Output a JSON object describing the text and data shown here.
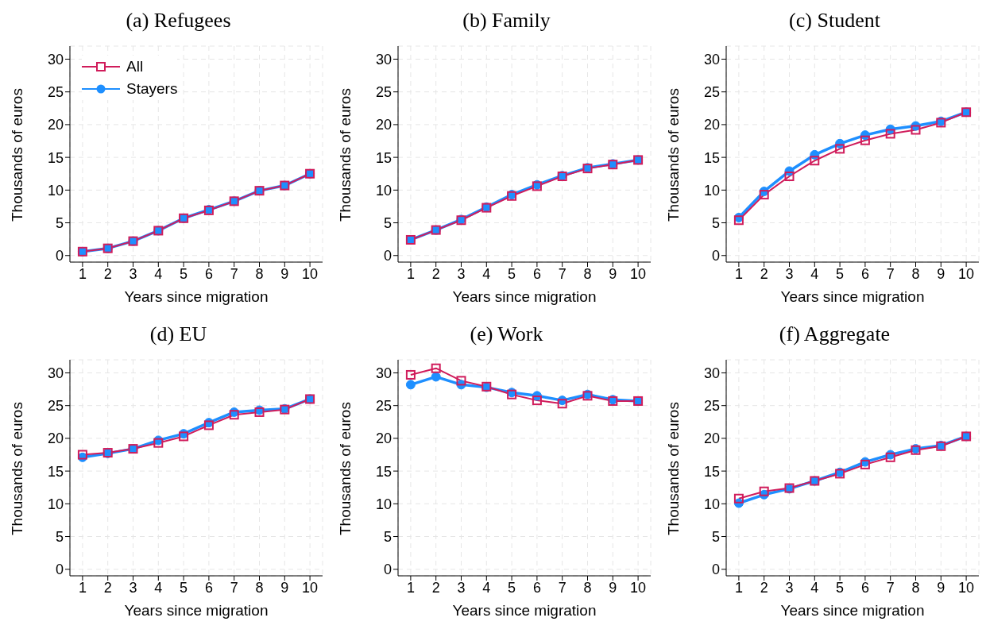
{
  "chart_data": [
    {
      "type": "line",
      "title": "(a) Refugees",
      "xlabel": "Years since migration",
      "ylabel": "Thousands of euros",
      "x": [
        1,
        2,
        3,
        4,
        5,
        6,
        7,
        8,
        9,
        10
      ],
      "xlim": [
        0.5,
        10.5
      ],
      "xticks": [
        1,
        2,
        3,
        4,
        5,
        6,
        7,
        8,
        9,
        10
      ],
      "ylim": [
        -1,
        32
      ],
      "yticks": [
        0,
        5,
        10,
        15,
        20,
        25,
        30
      ],
      "grid": true,
      "legend": "top left",
      "series": [
        {
          "name": "All",
          "color": "#d01c5b",
          "marker": "square",
          "values": [
            0.6,
            1.1,
            2.2,
            3.8,
            5.7,
            6.9,
            8.3,
            9.9,
            10.7,
            12.5
          ]
        },
        {
          "name": "Stayers",
          "color": "#1e8fff",
          "marker": "circle",
          "values": [
            0.6,
            1.1,
            2.2,
            3.8,
            5.7,
            7.0,
            8.3,
            9.9,
            10.7,
            12.5
          ]
        }
      ]
    },
    {
      "type": "line",
      "title": "(b) Family",
      "xlabel": "Years since migration",
      "ylabel": "Thousands of euros",
      "x": [
        1,
        2,
        3,
        4,
        5,
        6,
        7,
        8,
        9,
        10
      ],
      "xlim": [
        0.5,
        10.5
      ],
      "xticks": [
        1,
        2,
        3,
        4,
        5,
        6,
        7,
        8,
        9,
        10
      ],
      "ylim": [
        -1,
        32
      ],
      "yticks": [
        0,
        5,
        10,
        15,
        20,
        25,
        30
      ],
      "grid": true,
      "series": [
        {
          "color": "#d01c5b",
          "marker": "square",
          "values": [
            2.4,
            3.9,
            5.4,
            7.3,
            9.1,
            10.6,
            12.1,
            13.3,
            13.9,
            14.6
          ]
        },
        {
          "color": "#1e8fff",
          "marker": "circle",
          "values": [
            2.4,
            3.9,
            5.5,
            7.4,
            9.3,
            10.8,
            12.2,
            13.4,
            14.0,
            14.6
          ]
        }
      ]
    },
    {
      "type": "line",
      "title": "(c) Student",
      "xlabel": "Years since migration",
      "ylabel": "Thousands of euros",
      "x": [
        1,
        2,
        3,
        4,
        5,
        6,
        7,
        8,
        9,
        10
      ],
      "xlim": [
        0.5,
        10.5
      ],
      "xticks": [
        1,
        2,
        3,
        4,
        5,
        6,
        7,
        8,
        9,
        10
      ],
      "ylim": [
        -1,
        32
      ],
      "yticks": [
        0,
        5,
        10,
        15,
        20,
        25,
        30
      ],
      "grid": true,
      "series": [
        {
          "color": "#d01c5b",
          "marker": "square",
          "values": [
            5.4,
            9.3,
            12.1,
            14.5,
            16.3,
            17.6,
            18.6,
            19.2,
            20.3,
            21.9
          ]
        },
        {
          "color": "#1e8fff",
          "marker": "circle",
          "values": [
            5.8,
            9.8,
            12.9,
            15.4,
            17.1,
            18.4,
            19.3,
            19.8,
            20.5,
            21.9
          ]
        }
      ]
    },
    {
      "type": "line",
      "title": "(d) EU",
      "xlabel": "Years since migration",
      "ylabel": "Thousands of euros",
      "x": [
        1,
        2,
        3,
        4,
        5,
        6,
        7,
        8,
        9,
        10
      ],
      "xlim": [
        0.5,
        10.5
      ],
      "xticks": [
        1,
        2,
        3,
        4,
        5,
        6,
        7,
        8,
        9,
        10
      ],
      "ylim": [
        -1,
        32
      ],
      "yticks": [
        0,
        5,
        10,
        15,
        20,
        25,
        30
      ],
      "grid": true,
      "series": [
        {
          "color": "#d01c5b",
          "marker": "square",
          "values": [
            17.5,
            17.8,
            18.4,
            19.3,
            20.3,
            22.0,
            23.6,
            24.0,
            24.4,
            26.0
          ]
        },
        {
          "color": "#1e8fff",
          "marker": "circle",
          "values": [
            17.1,
            17.7,
            18.4,
            19.7,
            20.7,
            22.4,
            24.0,
            24.3,
            24.5,
            26.0
          ]
        }
      ]
    },
    {
      "type": "line",
      "title": "(e) Work",
      "xlabel": "Years since migration",
      "ylabel": "Thousands of euros",
      "x": [
        1,
        2,
        3,
        4,
        5,
        6,
        7,
        8,
        9,
        10
      ],
      "xlim": [
        0.5,
        10.5
      ],
      "xticks": [
        1,
        2,
        3,
        4,
        5,
        6,
        7,
        8,
        9,
        10
      ],
      "ylim": [
        -1,
        32
      ],
      "yticks": [
        0,
        5,
        10,
        15,
        20,
        25,
        30
      ],
      "grid": true,
      "series": [
        {
          "color": "#d01c5b",
          "marker": "square",
          "values": [
            29.7,
            30.7,
            28.8,
            27.9,
            26.7,
            25.8,
            25.3,
            26.5,
            25.7,
            25.7
          ]
        },
        {
          "color": "#1e8fff",
          "marker": "circle",
          "values": [
            28.2,
            29.4,
            28.2,
            27.8,
            27.0,
            26.5,
            25.8,
            26.7,
            25.9,
            25.7
          ]
        }
      ]
    },
    {
      "type": "line",
      "title": "(f) Aggregate",
      "xlabel": "Years since migration",
      "ylabel": "Thousands of euros",
      "x": [
        1,
        2,
        3,
        4,
        5,
        6,
        7,
        8,
        9,
        10
      ],
      "xlim": [
        0.5,
        10.5
      ],
      "xticks": [
        1,
        2,
        3,
        4,
        5,
        6,
        7,
        8,
        9,
        10
      ],
      "ylim": [
        -1,
        32
      ],
      "yticks": [
        0,
        5,
        10,
        15,
        20,
        25,
        30
      ],
      "grid": true,
      "series": [
        {
          "color": "#d01c5b",
          "marker": "square",
          "values": [
            10.8,
            11.9,
            12.4,
            13.5,
            14.6,
            16.0,
            17.1,
            18.2,
            18.8,
            20.3
          ]
        },
        {
          "color": "#1e8fff",
          "marker": "circle",
          "values": [
            10.1,
            11.4,
            12.3,
            13.5,
            14.8,
            16.4,
            17.5,
            18.4,
            18.9,
            20.3
          ]
        }
      ]
    }
  ]
}
